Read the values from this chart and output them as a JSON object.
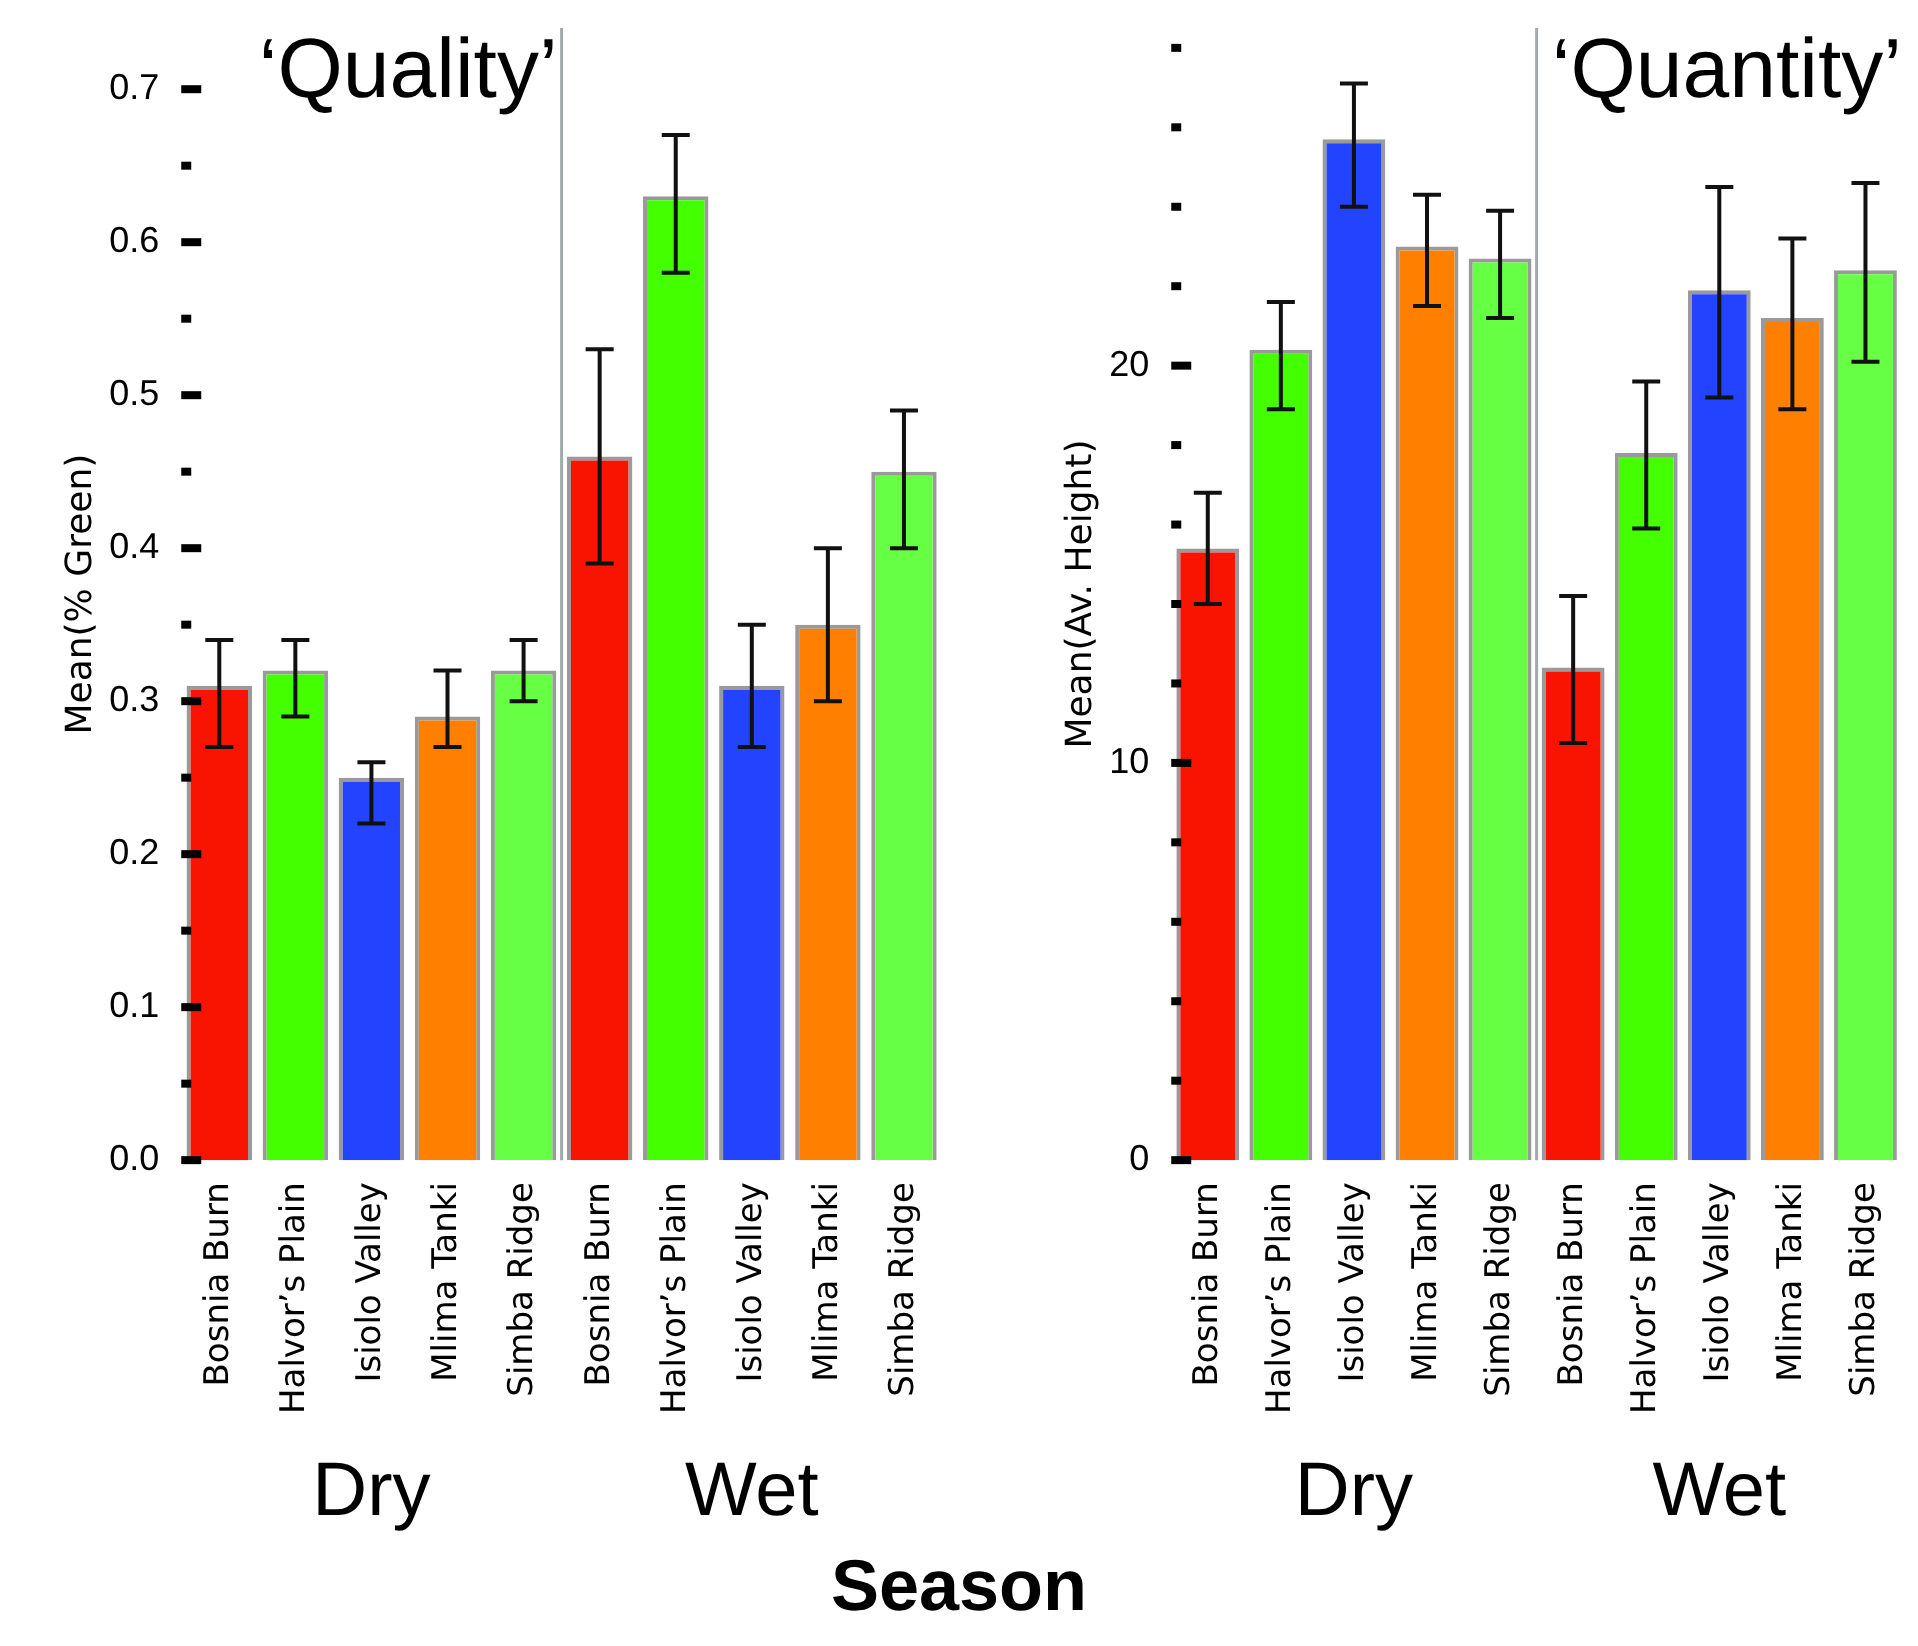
{
  "chart_data": [
    {
      "type": "bar",
      "title": "‘Quality’",
      "ylabel": "Mean(% Green)",
      "xlabel": "Season",
      "categories": [
        "Bosnia Burn",
        "Halvor’s Plain",
        "Isiolo Valley",
        "Mlima Tanki",
        "Simba Ridge",
        "Bosnia Burn",
        "Halvor’s Plain",
        "Isiolo Valley",
        "Mlima Tanki",
        "Simba Ridge"
      ],
      "values": [
        0.31,
        0.32,
        0.25,
        0.29,
        0.32,
        0.46,
        0.63,
        0.31,
        0.35,
        0.45
      ],
      "errors": [
        [
          0.27,
          0.34
        ],
        [
          0.29,
          0.34
        ],
        [
          0.22,
          0.26
        ],
        [
          0.27,
          0.32
        ],
        [
          0.3,
          0.34
        ],
        [
          0.39,
          0.53
        ],
        [
          0.58,
          0.67
        ],
        [
          0.27,
          0.35
        ],
        [
          0.3,
          0.4
        ],
        [
          0.4,
          0.49
        ]
      ],
      "colors": [
        "#f81400",
        "#44ff00",
        "#2244ff",
        "#ff7f00",
        "#66ff44",
        "#f81400",
        "#44ff00",
        "#2244ff",
        "#ff7f00",
        "#66ff44"
      ],
      "ylim": [
        0,
        0.74
      ],
      "yticks": [
        {
          "value": 0,
          "label": "0.0"
        },
        {
          "value": 0.05,
          "label": null
        },
        {
          "value": 0.1,
          "label": "0.1"
        },
        {
          "value": 0.15,
          "label": null
        },
        {
          "value": 0.2,
          "label": "0.2"
        },
        {
          "value": 0.25,
          "label": null
        },
        {
          "value": 0.3,
          "label": "0.3"
        },
        {
          "value": 0.35,
          "label": null
        },
        {
          "value": 0.4,
          "label": "0.4"
        },
        {
          "value": 0.45,
          "label": null
        },
        {
          "value": 0.5,
          "label": "0.5"
        },
        {
          "value": 0.55,
          "label": null
        },
        {
          "value": 0.6,
          "label": "0.6"
        },
        {
          "value": 0.65,
          "label": null
        },
        {
          "value": 0.7,
          "label": "0.7"
        }
      ],
      "annotations": [
        "Dry",
        "Wet"
      ]
    },
    {
      "type": "bar",
      "title": "‘Quantity’",
      "ylabel": "Mean(Av. Height)",
      "categories": [
        "Bosnia Burn",
        "Halvor’s Plain",
        "Isiolo Valley",
        "Mlima Tanki",
        "Simba Ridge",
        "Bosnia Burn",
        "Halvor’s Plain",
        "Isiolo Valley",
        "Mlima Tanki",
        "Simba Ridge"
      ],
      "values": [
        15.4,
        20.4,
        25.7,
        23.0,
        22.7,
        12.4,
        17.8,
        21.9,
        21.2,
        22.4
      ],
      "errors": [
        [
          14.0,
          16.8
        ],
        [
          18.9,
          21.6
        ],
        [
          24.0,
          27.1
        ],
        [
          21.5,
          24.3
        ],
        [
          21.2,
          23.9
        ],
        [
          10.5,
          14.2
        ],
        [
          15.9,
          19.6
        ],
        [
          19.2,
          24.5
        ],
        [
          18.9,
          23.2
        ],
        [
          20.1,
          24.6
        ]
      ],
      "colors": [
        "#f81400",
        "#44ff00",
        "#2244ff",
        "#ff7f00",
        "#66ff44",
        "#f81400",
        "#44ff00",
        "#2244ff",
        "#ff7f00",
        "#66ff44"
      ],
      "ylim": [
        0,
        28.5
      ],
      "yticks": [
        0,
        {
          "value": 2,
          "label": null
        },
        {
          "value": 4,
          "label": null
        },
        {
          "value": 6,
          "label": null
        },
        {
          "value": 8,
          "label": null
        },
        10,
        {
          "value": 12,
          "label": null
        },
        {
          "value": 14,
          "label": null
        },
        {
          "value": 16,
          "label": null
        },
        {
          "value": 18,
          "label": null
        },
        20,
        {
          "value": 22,
          "label": null
        },
        {
          "value": 24,
          "label": null
        },
        {
          "value": 26,
          "label": null
        },
        {
          "value": 28,
          "label": null
        }
      ],
      "annotations": [
        "Dry",
        "Wet"
      ]
    }
  ]
}
